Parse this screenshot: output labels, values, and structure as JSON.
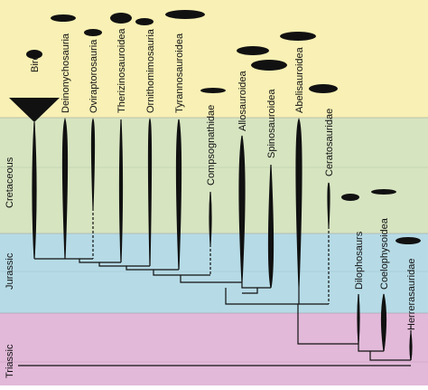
{
  "periods": [
    "Cretaceous",
    "Jurassic",
    "Triassic"
  ],
  "clades": [
    "Birds",
    "Deinonychosauria",
    "Oviraptorosauria",
    "Therizinosauroidea",
    "Ornithomimosauria",
    "Tyrannosauroidea",
    "Compsognathidae",
    "Allosauroidea",
    "Spinosauroidea",
    "Abelisauroidea",
    "Ceratosauridae",
    "Dilophosaurs",
    "Coelophysoidea",
    "Herrerasauridae"
  ]
}
